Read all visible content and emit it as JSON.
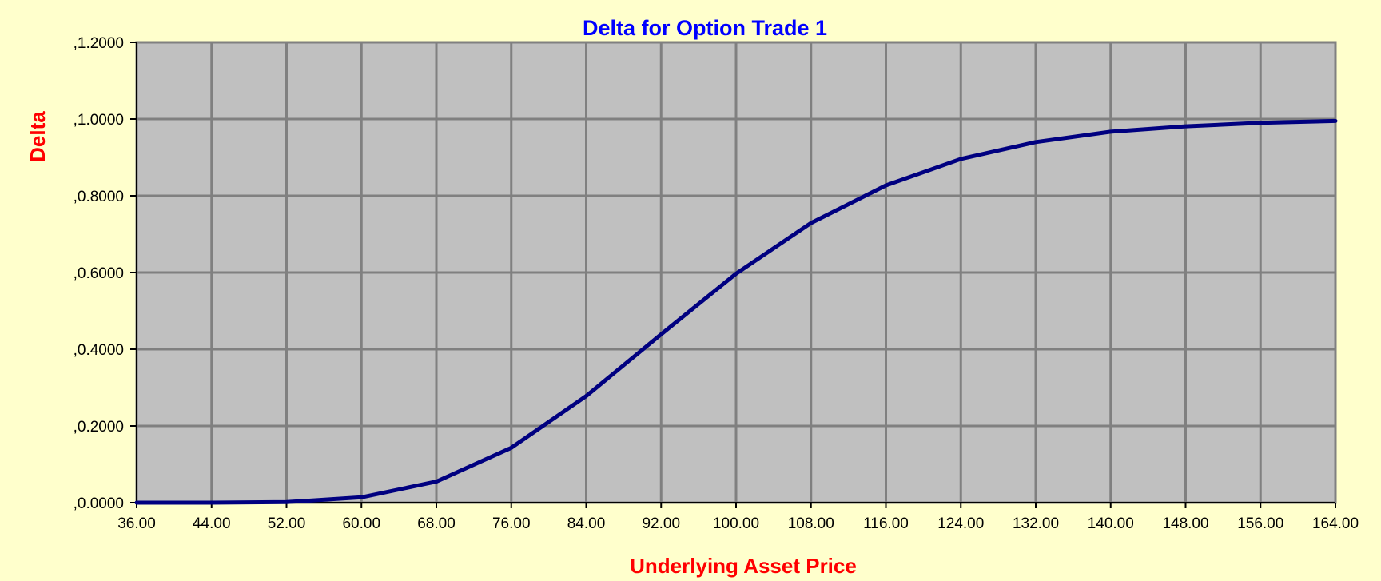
{
  "chart_data": {
    "type": "line",
    "title": "Delta for Option Trade 1",
    "xlabel": "Underlying Asset Price",
    "ylabel": "Delta",
    "x": [
      36,
      44,
      52,
      60,
      68,
      76,
      84,
      92,
      100,
      108,
      116,
      124,
      132,
      140,
      148,
      156,
      164
    ],
    "x_tick_labels": [
      "36.00",
      "44.00",
      "52.00",
      "60.00",
      "68.00",
      "76.00",
      "84.00",
      "92.00",
      "100.00",
      "108.00",
      "116.00",
      "124.00",
      "132.00",
      "140.00",
      "148.00",
      "156.00",
      "164.00"
    ],
    "y_tick_labels": [
      ",0.0000",
      ",0.2000",
      ",0.4000",
      ",0.6000",
      ",0.8000",
      ",1.0000",
      ",1.2000"
    ],
    "y_ticks": [
      0,
      0.2,
      0.4,
      0.6,
      0.8,
      1.0,
      1.2
    ],
    "ylim": [
      0,
      1.2
    ],
    "xlim": [
      36,
      164
    ],
    "grid": true,
    "legend": "none",
    "series": [
      {
        "values": [
          0.0,
          0.0,
          0.0015,
          0.014,
          0.055,
          0.143,
          0.278,
          0.439,
          0.597,
          0.729,
          0.827,
          0.896,
          0.94,
          0.967,
          0.981,
          0.99,
          0.995
        ]
      }
    ],
    "colors": {
      "background": "#FFFFCC",
      "plot_area": "#C0C0C0",
      "grid": "#808080",
      "line": "#000080",
      "title": "#0000FF",
      "axis_title": "#FF0000",
      "axis": "#000000"
    }
  }
}
